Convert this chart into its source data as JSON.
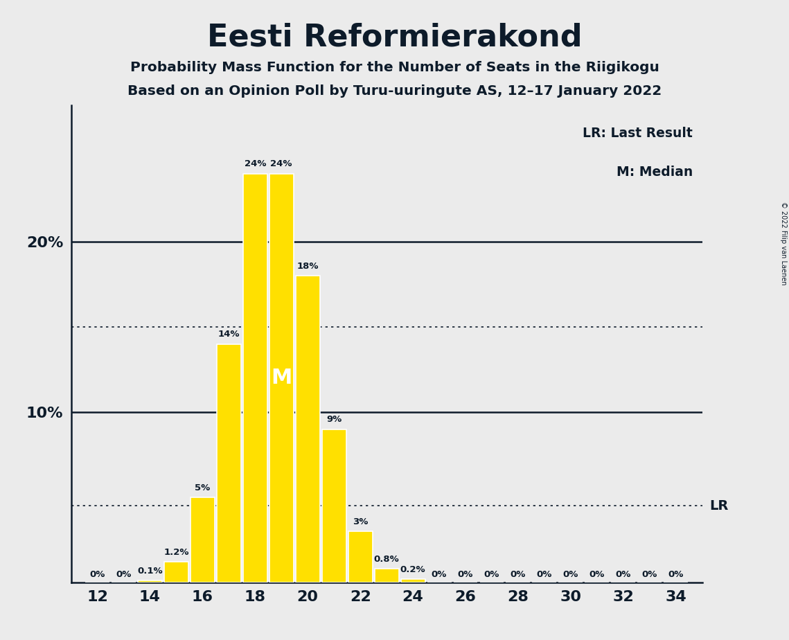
{
  "title": "Eesti Reformierakond",
  "subtitle1": "Probability Mass Function for the Number of Seats in the Riigikogu",
  "subtitle2": "Based on an Opinion Poll by Turu-uuringute AS, 12–17 January 2022",
  "copyright": "© 2022 Filip van Laenen",
  "seats": [
    12,
    13,
    14,
    15,
    16,
    17,
    18,
    19,
    20,
    21,
    22,
    23,
    24,
    25,
    26,
    27,
    28,
    29,
    30,
    31,
    32,
    33,
    34
  ],
  "probabilities": [
    0.0,
    0.0,
    0.1,
    1.2,
    5.0,
    14.0,
    24.0,
    24.0,
    18.0,
    9.0,
    3.0,
    0.8,
    0.2,
    0.0,
    0.0,
    0.0,
    0.0,
    0.0,
    0.0,
    0.0,
    0.0,
    0.0,
    0.0
  ],
  "bar_color": "#FFE000",
  "bar_edge_color": "#FFFFFF",
  "background_color": "#EBEBEB",
  "text_color": "#0d1b2a",
  "median_seat": 19,
  "last_result_dotted_y": 4.5,
  "upper_dotted_y": 15.0,
  "solid_line_y": [
    10.0,
    20.0
  ],
  "ylim": [
    0,
    28
  ],
  "xlim": [
    11,
    35
  ],
  "legend_lr": "LR: Last Result",
  "legend_m": "M: Median",
  "lr_label": "LR",
  "prob_labels": {
    "12": "0%",
    "13": "0%",
    "14": "0.1%",
    "15": "1.2%",
    "16": "5%",
    "17": "14%",
    "18": "24%",
    "19": "24%",
    "20": "18%",
    "21": "9%",
    "22": "3%",
    "23": "0.8%",
    "24": "0.2%",
    "25": "0%",
    "26": "0%",
    "27": "0%",
    "28": "0%",
    "29": "0%",
    "30": "0%",
    "31": "0%",
    "32": "0%",
    "33": "0%",
    "34": "0%"
  }
}
